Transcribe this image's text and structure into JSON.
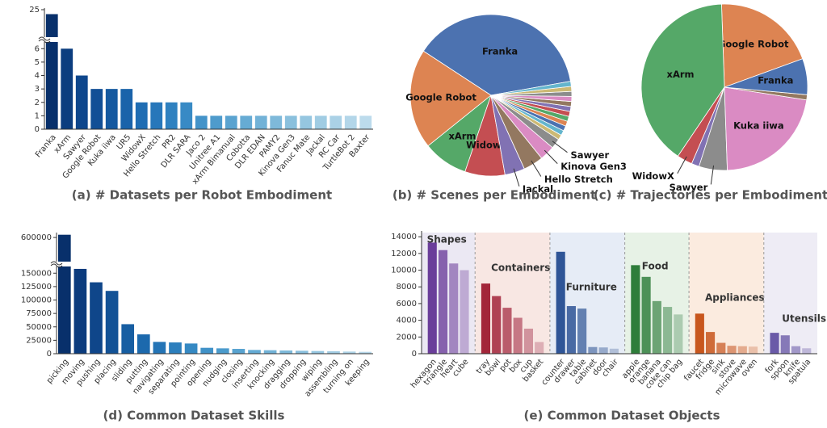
{
  "chart_data": [
    {
      "type": "bar",
      "title": "(a) # Datasets per Robot Embodiment",
      "categories": [
        "Franka",
        "xArm",
        "Sawyer",
        "Google Robot",
        "Kuka iiwa",
        "UR5",
        "WidowX",
        "Hello Stretch",
        "PR2",
        "DLR SARA",
        "Jaco 2",
        "Unitree A1",
        "xArm Bimanual",
        "Cobotta",
        "DLR EDAN",
        "PAMY2",
        "Kinova Gen3",
        "Fanuc Mate",
        "Jackal",
        "RC Car",
        "TurtleBot 2",
        "Baxter"
      ],
      "values": [
        22,
        6,
        4,
        3,
        3,
        3,
        2,
        2,
        2,
        2,
        1,
        1,
        1,
        1,
        1,
        1,
        1,
        1,
        1,
        1,
        1,
        1
      ],
      "colors": [
        "#08306b",
        "#0b3d7f",
        "#0e468c",
        "#124f96",
        "#1559a0",
        "#1a63aa",
        "#1f6db3",
        "#2777ba",
        "#2f81c0",
        "#388ac5",
        "#4393c9",
        "#4e9bcc",
        "#5aa3d0",
        "#66abd4",
        "#72b2d7",
        "#7eb9da",
        "#8ac0dd",
        "#95c6e0",
        "#a0cce3",
        "#aad1e6",
        "#b3d6e9",
        "#bcdbec"
      ],
      "ylim": [
        0,
        25
      ],
      "ybreak": 6.5,
      "yticks": [
        0,
        1,
        2,
        3,
        4,
        5,
        6,
        25
      ]
    },
    {
      "type": "pie",
      "title": "(b) # Scenes per Embodiment",
      "categories": [
        "Franka",
        "Google Robot",
        "xArm",
        "WidowX",
        "Jackal",
        "Hello Stretch",
        "Kinova Gen3",
        "Sawyer",
        null,
        null,
        null,
        null,
        null,
        null,
        null,
        null,
        null,
        null,
        null,
        null
      ],
      "values": [
        38,
        20,
        9,
        8,
        4,
        4,
        3,
        2,
        1,
        1,
        1,
        1,
        1,
        1,
        1,
        1,
        1,
        1,
        1,
        1
      ],
      "colors": [
        "#4c72b0",
        "#dd8452",
        "#55a868",
        "#c44e52",
        "#8172b3",
        "#937860",
        "#da8bc3",
        "#8c8c8c",
        "#ccb974",
        "#64b5cd",
        "#4c72b0",
        "#dd8452",
        "#55a868",
        "#c44e52",
        "#8172b3",
        "#937860",
        "#da8bc3",
        "#8c8c8c",
        "#ccb974",
        "#64b5cd"
      ]
    },
    {
      "type": "pie",
      "title": "(c) # Trajectories per Embodiment",
      "categories": [
        "Google Robot",
        "xArm",
        "WidowX",
        null,
        "Sawyer",
        "Kuka iiwa",
        null,
        "Franka"
      ],
      "values": [
        20,
        40,
        3,
        1.5,
        5.5,
        22,
        1,
        7
      ],
      "colors": [
        "#dd8452",
        "#55a868",
        "#c44e52",
        "#8172b3",
        "#8c8c8c",
        "#da8bc3",
        "#937860",
        "#4c72b0"
      ]
    },
    {
      "type": "bar",
      "title": "(d) Common Dataset Skills",
      "categories": [
        "picking",
        "moving",
        "pushing",
        "placing",
        "sliding",
        "putting",
        "navigating",
        "separating",
        "pointing",
        "opening",
        "nudging",
        "closing",
        "inserting",
        "knocking",
        "dragging",
        "dropping",
        "wiping",
        "assembling",
        "turning on",
        "keeping"
      ],
      "values": [
        650000,
        158000,
        133000,
        117000,
        55000,
        36000,
        22000,
        21000,
        19000,
        11000,
        10000,
        9000,
        7000,
        6500,
        6000,
        5500,
        5000,
        4500,
        4000,
        3500
      ],
      "colors": [
        "#08306b",
        "#0b3b7d",
        "#0f468a",
        "#135296",
        "#175ea2",
        "#1c69ad",
        "#2474b6",
        "#2c7fbd",
        "#3589c3",
        "#4092c8",
        "#4b9bcc",
        "#58a3d0",
        "#64abd4",
        "#71b2d7",
        "#7db9da",
        "#89bfdd",
        "#95c6e0",
        "#a1cce3",
        "#acd2e6",
        "#b6d7ea"
      ],
      "ylim": [
        0,
        660000
      ],
      "ybreak": 162500,
      "yticks": [
        0,
        25000,
        50000,
        75000,
        100000,
        125000,
        150000,
        600000
      ]
    },
    {
      "type": "grouped-bar",
      "title": "(e) Common Dataset Objects",
      "ylim": [
        0,
        14500
      ],
      "yticks": [
        0,
        2000,
        4000,
        6000,
        8000,
        10000,
        12000,
        14000
      ],
      "groups": [
        {
          "name": "Shapes",
          "color": "#6a3d9a",
          "background": "#ebe8f3",
          "categories": [
            "hexagon",
            "triangle",
            "heart",
            "cube"
          ],
          "values": [
            13300,
            12400,
            10800,
            10000
          ]
        },
        {
          "name": "Containers",
          "color": "#a3263a",
          "background": "#f8e7e3",
          "categories": [
            "tray",
            "bowl",
            "pot",
            "box",
            "cup",
            "basket"
          ],
          "values": [
            8400,
            6900,
            5500,
            4300,
            3000,
            1400
          ]
        },
        {
          "name": "Furniture",
          "color": "#2f5597",
          "background": "#e6ecf6",
          "categories": [
            "counter",
            "drawer",
            "table",
            "cabinet",
            "door",
            "chair"
          ],
          "values": [
            12200,
            5700,
            5400,
            800,
            750,
            600
          ]
        },
        {
          "name": "Food",
          "color": "#2e7d3a",
          "background": "#e7f2e6",
          "categories": [
            "apple",
            "orange",
            "banana",
            "coke can",
            "chip bag"
          ],
          "values": [
            10600,
            9200,
            6300,
            5600,
            4700
          ]
        },
        {
          "name": "Appliances",
          "color": "#c8561d",
          "background": "#fbebdf",
          "categories": [
            "faucet",
            "fridge",
            "sink",
            "stove",
            "microwave",
            "oven"
          ],
          "values": [
            4800,
            2600,
            1300,
            950,
            900,
            850
          ]
        },
        {
          "name": "Utensils",
          "color": "#6a5aa8",
          "background": "#eeecf5",
          "categories": [
            "fork",
            "spoon",
            "knife",
            "spatula"
          ],
          "values": [
            2500,
            2200,
            900,
            650
          ]
        }
      ]
    }
  ]
}
